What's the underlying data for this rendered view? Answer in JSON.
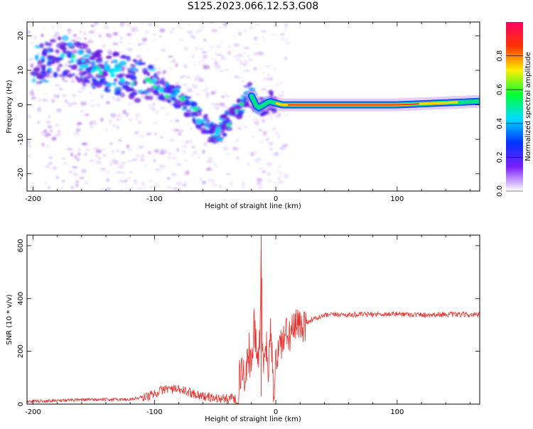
{
  "title": "S125.2023.066.12.53.G08",
  "chart_data": [
    {
      "type": "heatmap",
      "xlabel": "Height of straight line (km)",
      "ylabel": "Frequency (Hz)",
      "xlim": [
        -205,
        168
      ],
      "ylim": [
        -25,
        24
      ],
      "xticks": [
        -200,
        -100,
        0,
        100
      ],
      "yticks": [
        -20,
        -10,
        0,
        10,
        20
      ],
      "colorbar": {
        "label": "Normalized spectral amplitude",
        "range": [
          0,
          1
        ],
        "ticks": [
          "0.0",
          "0.2",
          "0.4",
          "0.6",
          "0.8"
        ],
        "colors": [
          "#ffffff",
          "#7b1fff",
          "#0033ff",
          "#00ddff",
          "#00ff33",
          "#ffee00",
          "#ff3300",
          "#ff0066"
        ]
      },
      "ridge": [
        {
          "x": -195,
          "y": 12
        },
        {
          "x": -175,
          "y": 14
        },
        {
          "x": -150,
          "y": 11
        },
        {
          "x": -120,
          "y": 8
        },
        {
          "x": -95,
          "y": 5
        },
        {
          "x": -80,
          "y": 2
        },
        {
          "x": -65,
          "y": -3
        },
        {
          "x": -50,
          "y": -9
        },
        {
          "x": -40,
          "y": -5
        },
        {
          "x": -30,
          "y": -1
        },
        {
          "x": -22,
          "y": 4
        },
        {
          "x": -15,
          "y": -1
        },
        {
          "x": -5,
          "y": 1
        },
        {
          "x": 5,
          "y": 0
        },
        {
          "x": 40,
          "y": 0
        },
        {
          "x": 100,
          "y": 0
        },
        {
          "x": 168,
          "y": 1
        }
      ]
    },
    {
      "type": "line",
      "xlabel": "Height of straight line (km)",
      "ylabel": "SNR (10 * v/v)",
      "xlim": [
        -205,
        168
      ],
      "ylim": [
        0,
        640
      ],
      "xticks": [
        -200,
        -100,
        0,
        100
      ],
      "yticks": [
        0,
        200,
        400,
        600
      ],
      "series": [
        {
          "color": "#e8322d",
          "x": [
            -205,
            -180,
            -150,
            -120,
            -105,
            -90,
            -75,
            -60,
            -50,
            -40,
            -32,
            -28,
            -25,
            -22,
            -20,
            -18,
            -15,
            -13,
            -12,
            -11,
            -10,
            -8,
            -6,
            -4,
            -2,
            0,
            5,
            10,
            15,
            20,
            25,
            30,
            40,
            50,
            60,
            80,
            100,
            120,
            140,
            168
          ],
          "y": [
            10,
            14,
            17,
            18,
            30,
            60,
            50,
            30,
            22,
            20,
            40,
            150,
            80,
            200,
            120,
            300,
            160,
            250,
            640,
            200,
            100,
            230,
            120,
            300,
            20,
            170,
            240,
            260,
            280,
            300,
            310,
            320,
            335,
            340,
            338,
            340,
            342,
            338,
            340,
            338
          ]
        }
      ]
    }
  ]
}
